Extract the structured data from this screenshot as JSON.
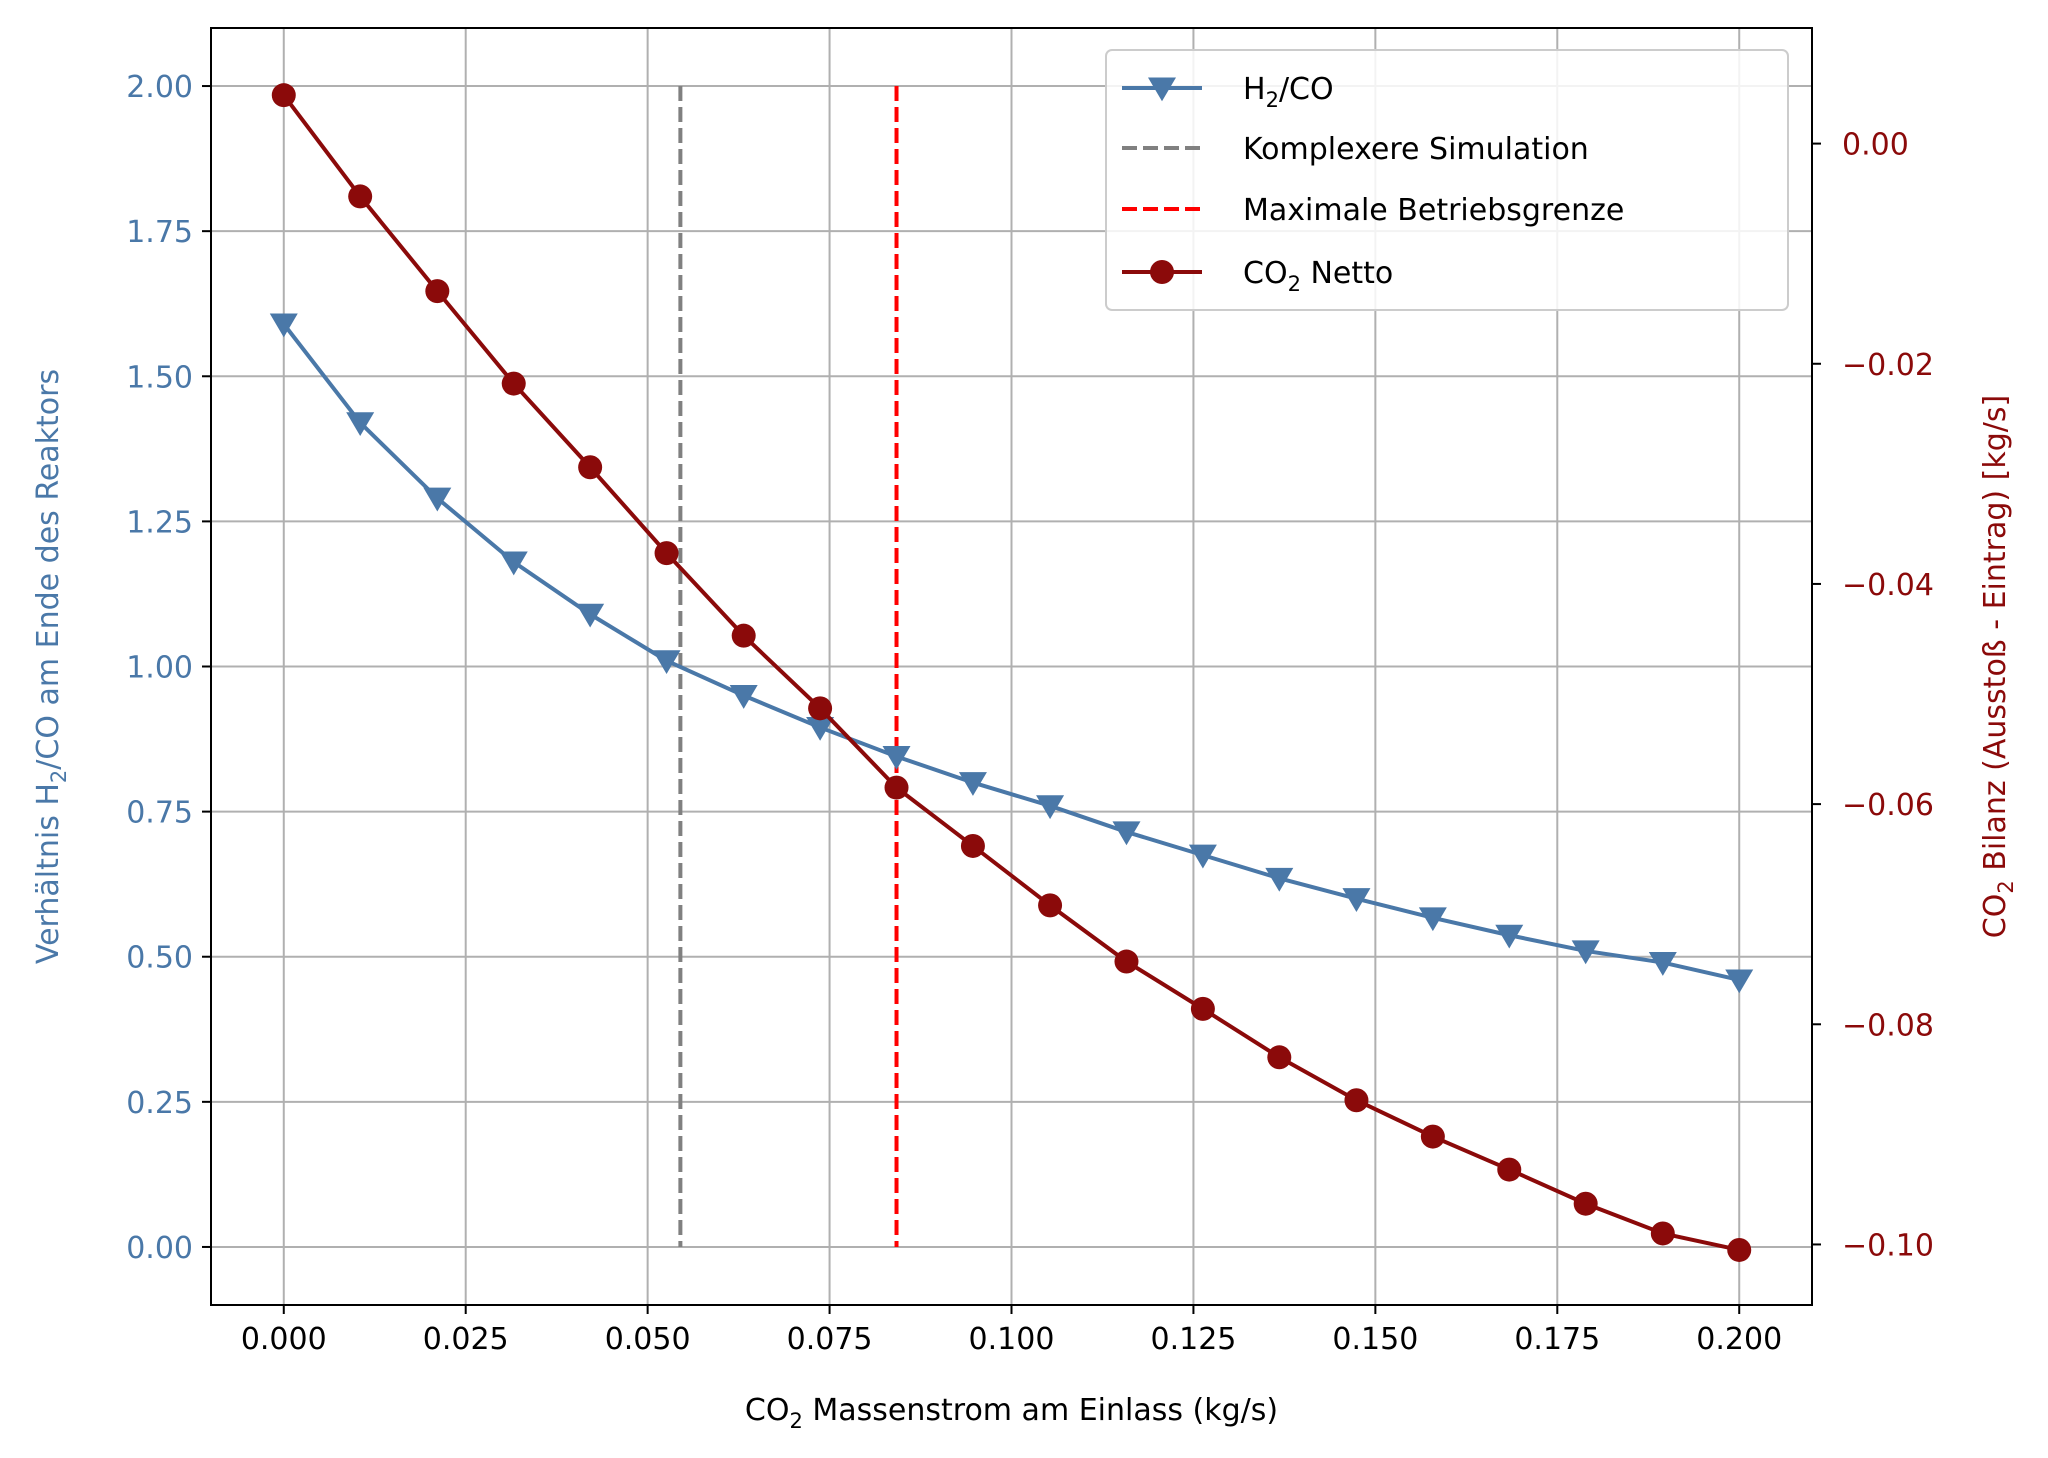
{
  "colors": {
    "h2co": "#4a78a8",
    "co2": "#8b0a0a",
    "sim_line": "#808080",
    "limit_line": "#ff0000",
    "grid": "#b0b0b0",
    "axis": "#000000"
  },
  "chart_data": {
    "type": "line",
    "x_axis": {
      "label_main": "CO",
      "label_sub": "2",
      "label_rest": " Massenstrom am Einlass (kg/s)",
      "range": [
        -0.01,
        0.21
      ],
      "ticks": [
        0.0,
        0.025,
        0.05,
        0.075,
        0.1,
        0.125,
        0.15,
        0.175,
        0.2
      ],
      "tick_labels": [
        "0.000",
        "0.025",
        "0.050",
        "0.075",
        "0.100",
        "0.125",
        "0.150",
        "0.175",
        "0.200"
      ]
    },
    "y_left": {
      "label_pre": "Verhältnis H",
      "label_sub": "2",
      "label_post": "/CO am Ende des Reaktors",
      "range": [
        -0.1,
        2.1
      ],
      "ticks": [
        0.0,
        0.25,
        0.5,
        0.75,
        1.0,
        1.25,
        1.5,
        1.75,
        2.0
      ],
      "tick_labels": [
        "0.00",
        "0.25",
        "0.50",
        "0.75",
        "1.00",
        "1.25",
        "1.50",
        "1.75",
        "2.00"
      ]
    },
    "y_right": {
      "label_pre": "CO",
      "label_sub": "2",
      "label_post": " Bilanz (Ausstoß - Eintrag) [kg/s]",
      "range": [
        -0.1055,
        0.0105
      ],
      "ticks": [
        0.0,
        -0.02,
        -0.04,
        -0.06,
        -0.08,
        -0.1
      ],
      "tick_labels": [
        "0.00",
        "−0.02",
        "−0.04",
        "−0.06",
        "−0.08",
        "−0.10"
      ]
    },
    "grid": true,
    "legend_position": "top-right",
    "series": [
      {
        "name_pre": "H",
        "name_sub": "2",
        "name_post": "/CO",
        "axis": "left",
        "marker": "triangle-down",
        "x": [
          0.0,
          0.0105,
          0.0211,
          0.0316,
          0.0421,
          0.0526,
          0.0632,
          0.0737,
          0.0842,
          0.0947,
          0.1053,
          0.1158,
          0.1263,
          0.1368,
          0.1474,
          0.1579,
          0.1684,
          0.1789,
          0.1895,
          0.2
        ],
        "values": [
          1.59,
          1.42,
          1.29,
          1.18,
          1.09,
          1.01,
          0.95,
          0.895,
          0.845,
          0.8,
          0.76,
          0.715,
          0.675,
          0.635,
          0.6,
          0.567,
          0.537,
          0.51,
          0.49,
          0.46
        ]
      },
      {
        "name_pre": "CO",
        "name_sub": "2",
        "name_post": " Netto",
        "axis": "right",
        "marker": "circle",
        "x": [
          0.0,
          0.0105,
          0.0211,
          0.0316,
          0.0421,
          0.0526,
          0.0632,
          0.0737,
          0.0842,
          0.0947,
          0.1053,
          0.1158,
          0.1263,
          0.1368,
          0.1474,
          0.1579,
          0.1684,
          0.1789,
          0.1895,
          0.2
        ],
        "values": [
          0.0044,
          -0.0048,
          -0.0134,
          -0.0218,
          -0.0294,
          -0.0372,
          -0.0447,
          -0.0513,
          -0.0585,
          -0.0638,
          -0.0692,
          -0.0743,
          -0.0786,
          -0.083,
          -0.0869,
          -0.0902,
          -0.0932,
          -0.0963,
          -0.099,
          -0.1005
        ]
      }
    ],
    "vlines": [
      {
        "name": "Komplexere Simulation",
        "x": 0.0545,
        "y_from": 0.0,
        "y_to": 2.0,
        "style": "dashed"
      },
      {
        "name": "Maximale Betriebsgrenze",
        "x": 0.0842,
        "y_from": 0.0,
        "y_to": 2.0,
        "style": "dashed"
      }
    ]
  }
}
